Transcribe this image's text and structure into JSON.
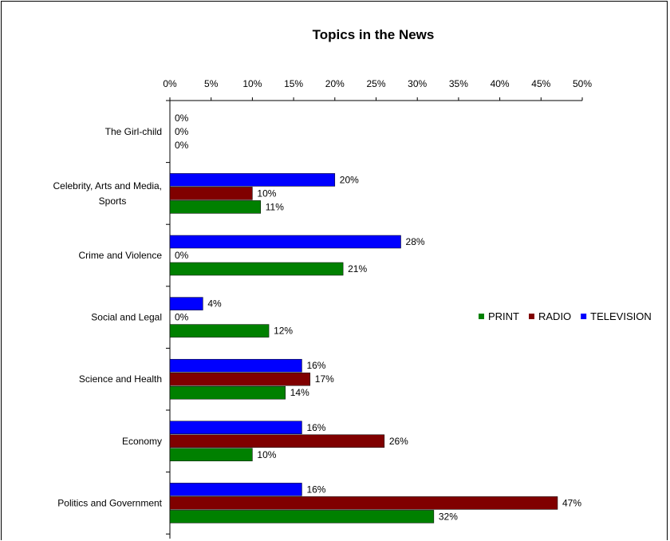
{
  "chart_data": {
    "type": "bar",
    "orientation": "horizontal",
    "title": "Topics in the News",
    "xlim": [
      0,
      50
    ],
    "x_ticks": [
      "0%",
      "5%",
      "10%",
      "15%",
      "20%",
      "25%",
      "30%",
      "35%",
      "40%",
      "45%",
      "50%"
    ],
    "x_axis_position": "top",
    "grid": false,
    "legend_placement": "right",
    "categories": [
      "The Girl-child",
      "Celebrity, Arts and Media, Sports",
      "Crime and Violence",
      "Social and Legal",
      "Science and Health",
      "Economy",
      "Politics and Government"
    ],
    "series": [
      {
        "name": "TELEVISION",
        "color": "#0000ff",
        "values": [
          0,
          20,
          28,
          4,
          16,
          16,
          16
        ],
        "labels": [
          "0%",
          "20%",
          "28%",
          "4%",
          "16%",
          "16%",
          "16%"
        ]
      },
      {
        "name": "RADIO",
        "color": "#800000",
        "values": [
          0,
          10,
          0,
          0,
          17,
          26,
          47
        ],
        "labels": [
          "0%",
          "10%",
          "0%",
          "0%",
          "17%",
          "26%",
          "47%"
        ]
      },
      {
        "name": "PRINT",
        "color": "#008000",
        "values": [
          0,
          11,
          21,
          12,
          14,
          10,
          32
        ],
        "labels": [
          "0%",
          "11%",
          "21%",
          "12%",
          "14%",
          "10%",
          "32%"
        ]
      }
    ],
    "legend_order": [
      "PRINT",
      "RADIO",
      "TELEVISION"
    ]
  }
}
